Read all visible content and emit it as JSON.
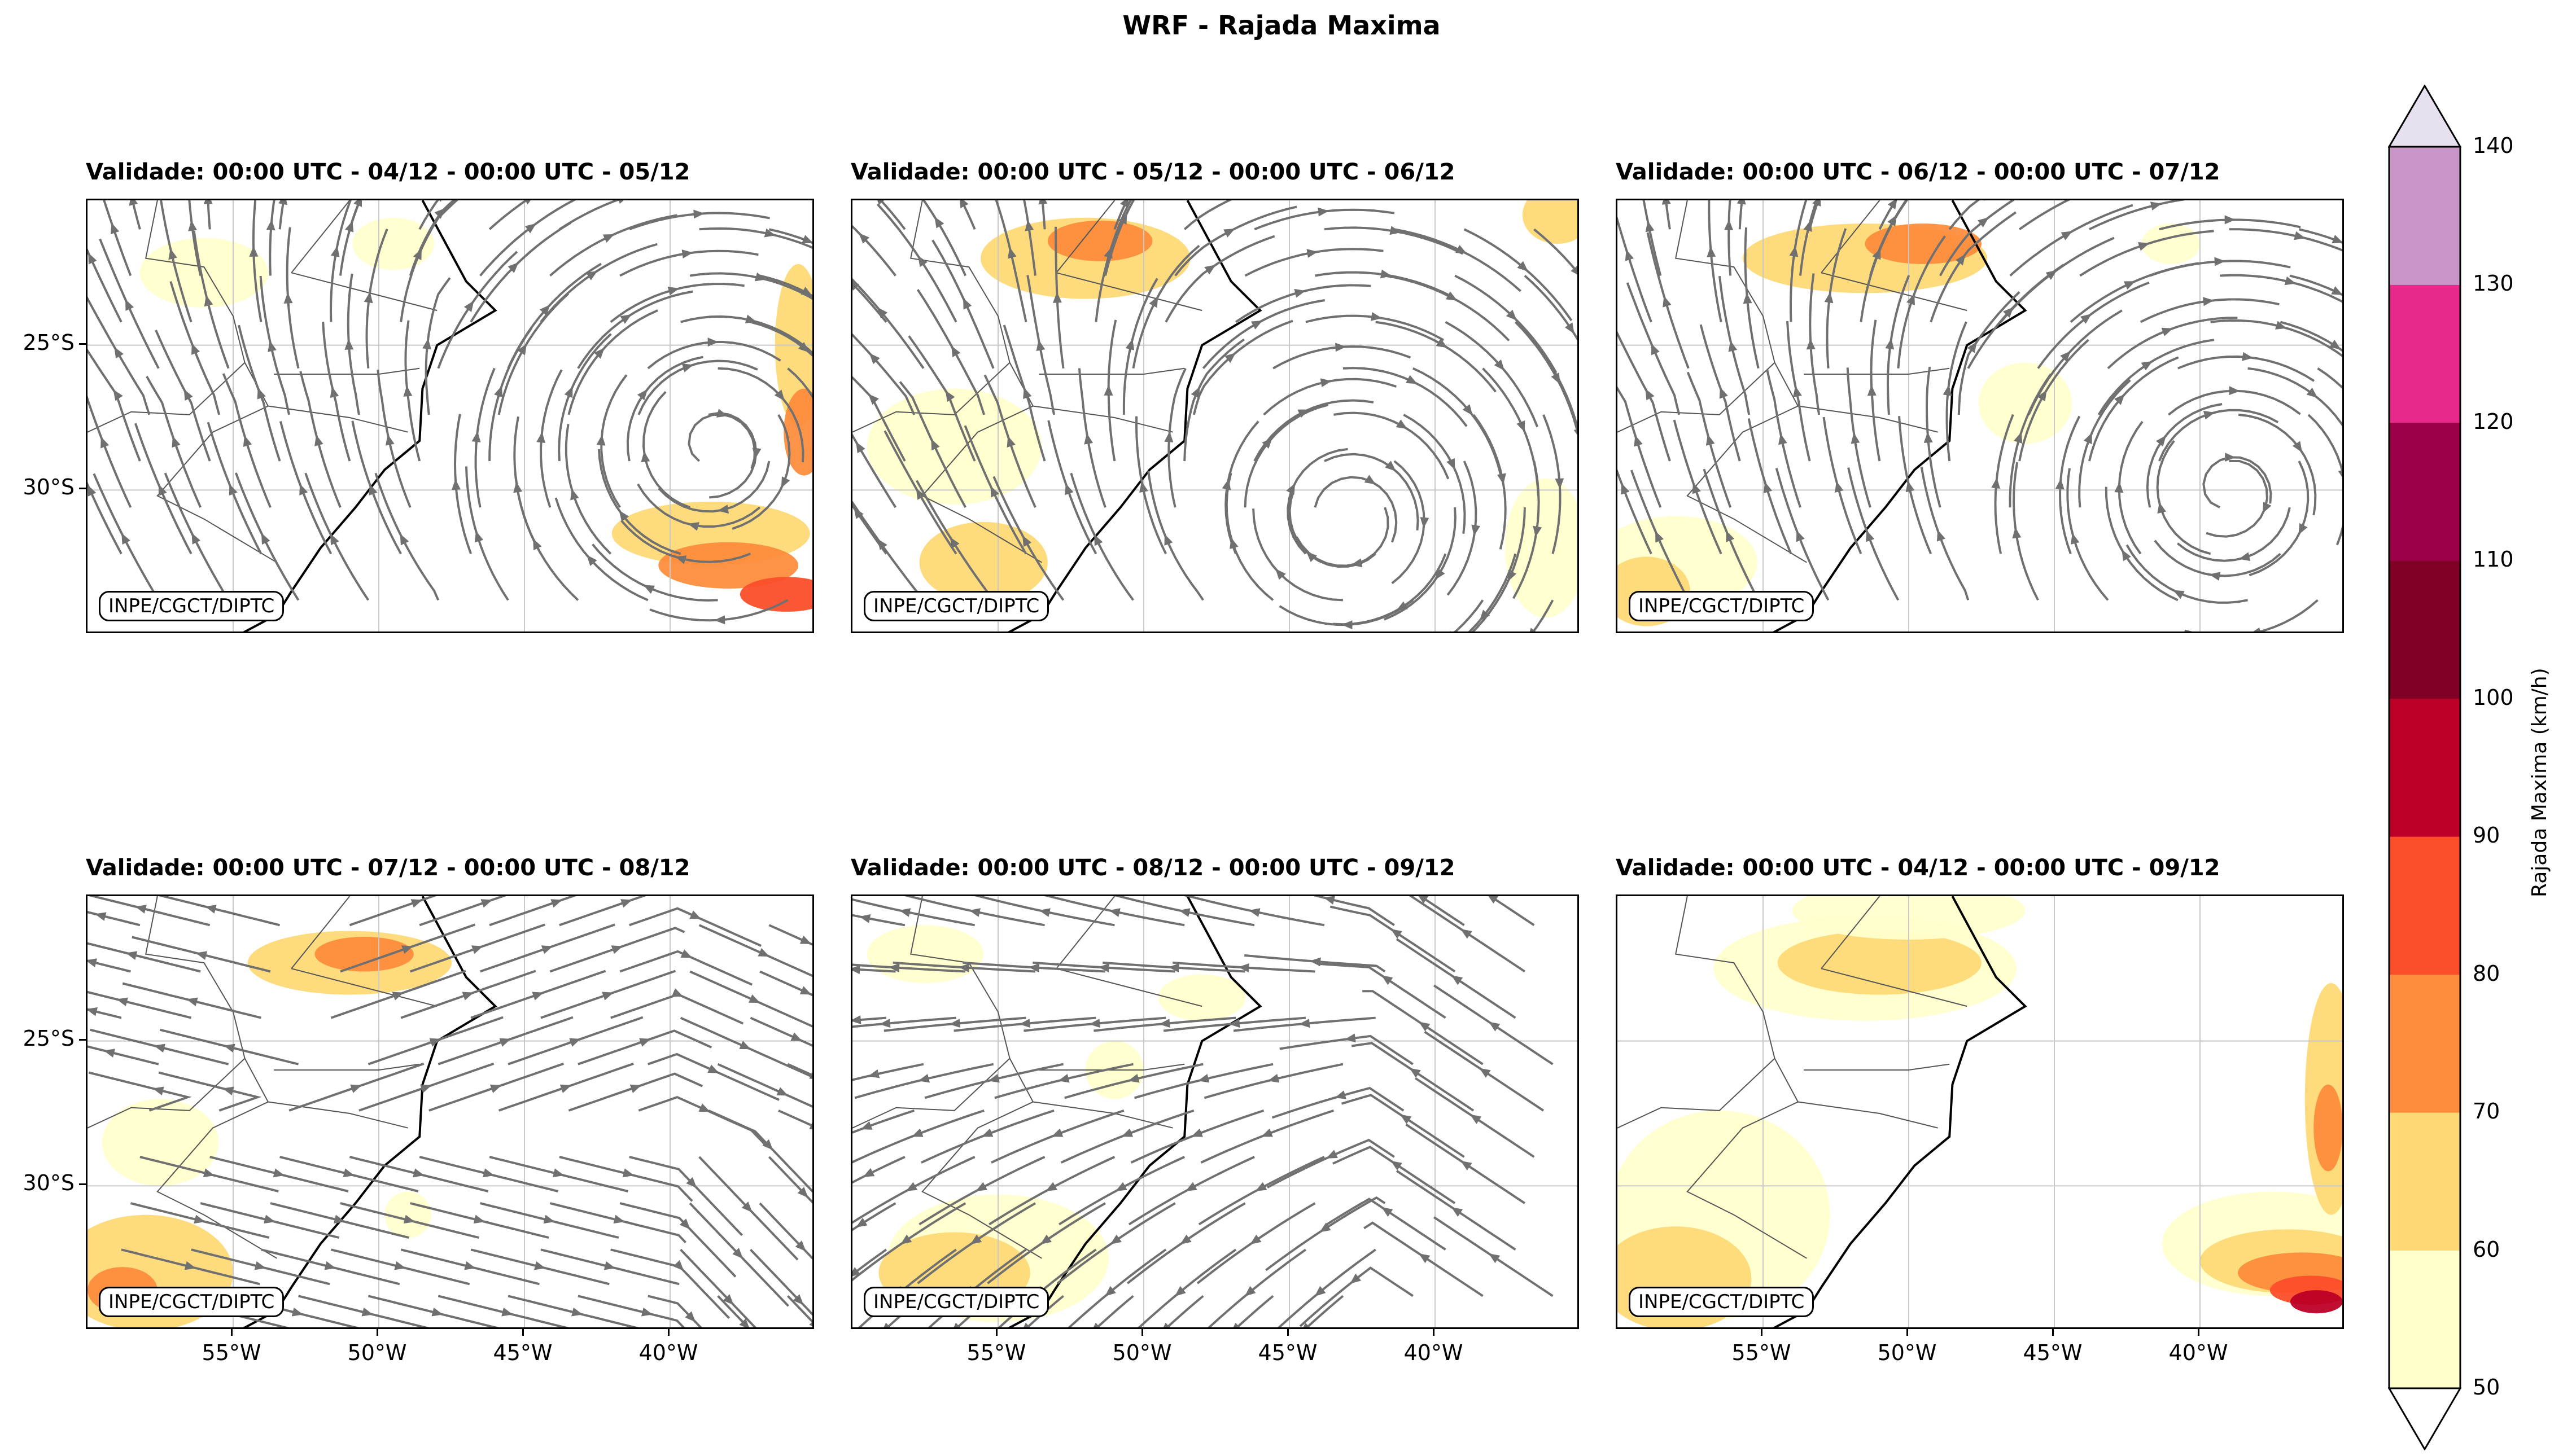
{
  "figure": {
    "title": "WRF - Rajada Maxima"
  },
  "chart_data": {
    "type": "heatmap",
    "title": "WRF - Rajada Maxima",
    "variable": "Rajada Maxima (km/h)",
    "overlay": "streamlines",
    "lon_range": [
      -60,
      -35
    ],
    "lat_range": [
      -35,
      -20
    ],
    "x_ticks": [
      "55°W",
      "50°W",
      "45°W",
      "40°W"
    ],
    "y_ticks": [
      "25°S",
      "30°S"
    ],
    "credit": "INPE/CGCT/DIPTC",
    "colorbar": {
      "label": "Rajada Maxima (km/h)",
      "levels": [
        50,
        60,
        70,
        80,
        90,
        100,
        110,
        120,
        130,
        140
      ],
      "colors": [
        "#ffffcc",
        "#fed976",
        "#fd8d3c",
        "#fc4e2a",
        "#bd0026",
        "#800026",
        "#9b0047",
        "#e7298a",
        "#c994c7",
        "#e7e1ef"
      ],
      "extend": "both"
    },
    "panels": [
      {
        "title": "Validade: 00:00 UTC - 04/12 - 00:00 UTC - 05/12",
        "gust_max": 80,
        "cyclone_center": [
          -38.5,
          -28.5
        ]
      },
      {
        "title": "Validade: 00:00 UTC - 05/12 - 00:00 UTC - 06/12",
        "gust_max": 70,
        "cyclone_center": [
          -43,
          -31
        ]
      },
      {
        "title": "Validade: 00:00 UTC - 06/12 - 00:00 UTC - 07/12",
        "gust_max": 70,
        "cyclone_center": [
          -39,
          -30
        ]
      },
      {
        "title": "Validade: 00:00 UTC - 07/12 - 00:00 UTC - 08/12",
        "gust_max": 70,
        "cyclone_center": null
      },
      {
        "title": "Validade: 00:00 UTC - 08/12 - 00:00 UTC - 09/12",
        "gust_max": 70,
        "cyclone_center": null
      },
      {
        "title": "Validade: 00:00 UTC - 04/12 - 00:00 UTC - 09/12",
        "gust_max": 90,
        "cyclone_center": null
      }
    ]
  }
}
